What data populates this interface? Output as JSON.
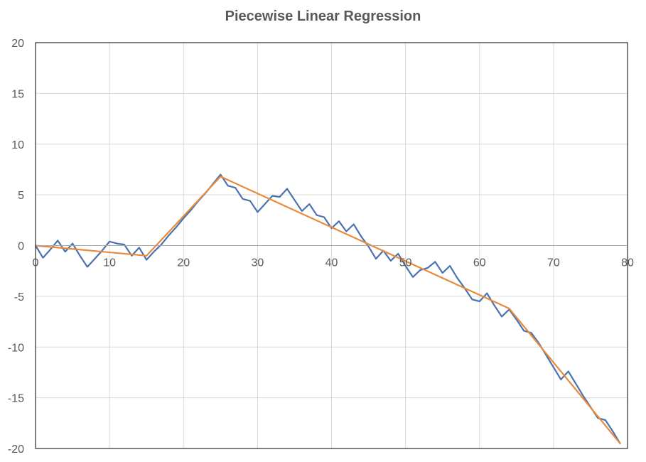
{
  "chart_data": {
    "type": "line",
    "title": "Piecewise Linear Regression",
    "xlim": [
      0,
      80
    ],
    "ylim": [
      -20,
      20
    ],
    "x_ticks": [
      0,
      10,
      20,
      30,
      40,
      50,
      60,
      70,
      80
    ],
    "y_ticks": [
      20,
      15,
      10,
      5,
      0,
      -5,
      -10,
      -15,
      -20
    ],
    "grid": true,
    "legend": "none",
    "series": [
      {
        "color": "#4a72b0",
        "x": [
          0,
          1,
          2,
          3,
          4,
          5,
          6,
          7,
          8,
          9,
          10,
          11,
          12,
          13,
          14,
          15,
          16,
          17,
          18,
          19,
          20,
          21,
          22,
          23,
          24,
          25,
          26,
          27,
          28,
          29,
          30,
          31,
          32,
          33,
          34,
          35,
          36,
          37,
          38,
          39,
          40,
          41,
          42,
          43,
          44,
          45,
          46,
          47,
          48,
          49,
          50,
          51,
          52,
          53,
          54,
          55,
          56,
          57,
          58,
          59,
          60,
          61,
          62,
          63,
          64,
          65,
          66,
          67,
          68,
          69,
          70,
          71,
          72,
          73,
          74,
          75,
          76,
          77,
          78,
          79
        ],
        "y": [
          0,
          -1.2,
          -0.4,
          0.5,
          -0.6,
          0.2,
          -1,
          -2.1,
          -1.3,
          -0.5,
          0.4,
          0.2,
          0.1,
          -1,
          -0.2,
          -1.4,
          -0.6,
          0.1,
          1,
          1.8,
          2.7,
          3.5,
          4.4,
          5.2,
          6.1,
          7,
          5.9,
          5.7,
          4.6,
          4.4,
          3.3,
          4.1,
          4.9,
          4.8,
          5.6,
          4.5,
          3.4,
          4.1,
          3,
          2.8,
          1.7,
          2.4,
          1.4,
          2.1,
          0.9,
          -0.1,
          -1.3,
          -0.5,
          -1.5,
          -0.8,
          -2,
          -3.1,
          -2.4,
          -2.2,
          -1.6,
          -2.7,
          -2,
          -3.2,
          -4.2,
          -5.3,
          -5.5,
          -4.7,
          -5.9,
          -7,
          -6.3,
          -7.3,
          -8.4,
          -8.6,
          -9.6,
          -10.8,
          -12,
          -13.2,
          -12.4,
          -13.6,
          -14.8,
          -15.9,
          -17,
          -17.2,
          -18.3,
          -19.5
        ]
      },
      {
        "color": "#e88a3c",
        "x": [
          0,
          15,
          25,
          64,
          79
        ],
        "y": [
          0,
          -1,
          6.8,
          -6.2,
          -19.5
        ]
      }
    ]
  }
}
